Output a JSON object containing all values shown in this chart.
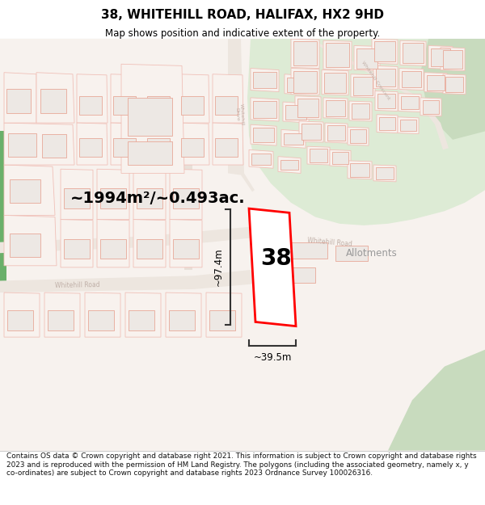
{
  "title": "38, WHITEHILL ROAD, HALIFAX, HX2 9HD",
  "subtitle": "Map shows position and indicative extent of the property.",
  "footer": "Contains OS data © Crown copyright and database right 2021. This information is subject to Crown copyright and database rights 2023 and is reproduced with the permission of HM Land Registry. The polygons (including the associated geometry, namely x, y co-ordinates) are subject to Crown copyright and database rights 2023 Ordnance Survey 100026316.",
  "area_label": "~1994m²/~0.493ac.",
  "width_label": "~39.5m",
  "height_label": "~97.4m",
  "property_number": "38",
  "allotments_label": "Allotments",
  "map_bg": "#f7f2ee",
  "green_area_color": "#ddebd5",
  "dark_green_color": "#c8dbbe",
  "building_outline_color": "#e8a898",
  "building_fill": "#ede8e4",
  "plot_outline_color": "#f0c0b8",
  "plot_fill": "#f8f2ee",
  "road_fill": "#f0ebe6",
  "road_outline": "#e8a898",
  "property_outline_color": "#ff0000",
  "property_fill": "#ffffff",
  "road_label_color": "#c0b0aa",
  "dimension_line_color": "#333333",
  "title_color": "#000000",
  "subtitle_color": "#000000",
  "footer_color": "#111111",
  "left_green_color": "#4a8a4a"
}
